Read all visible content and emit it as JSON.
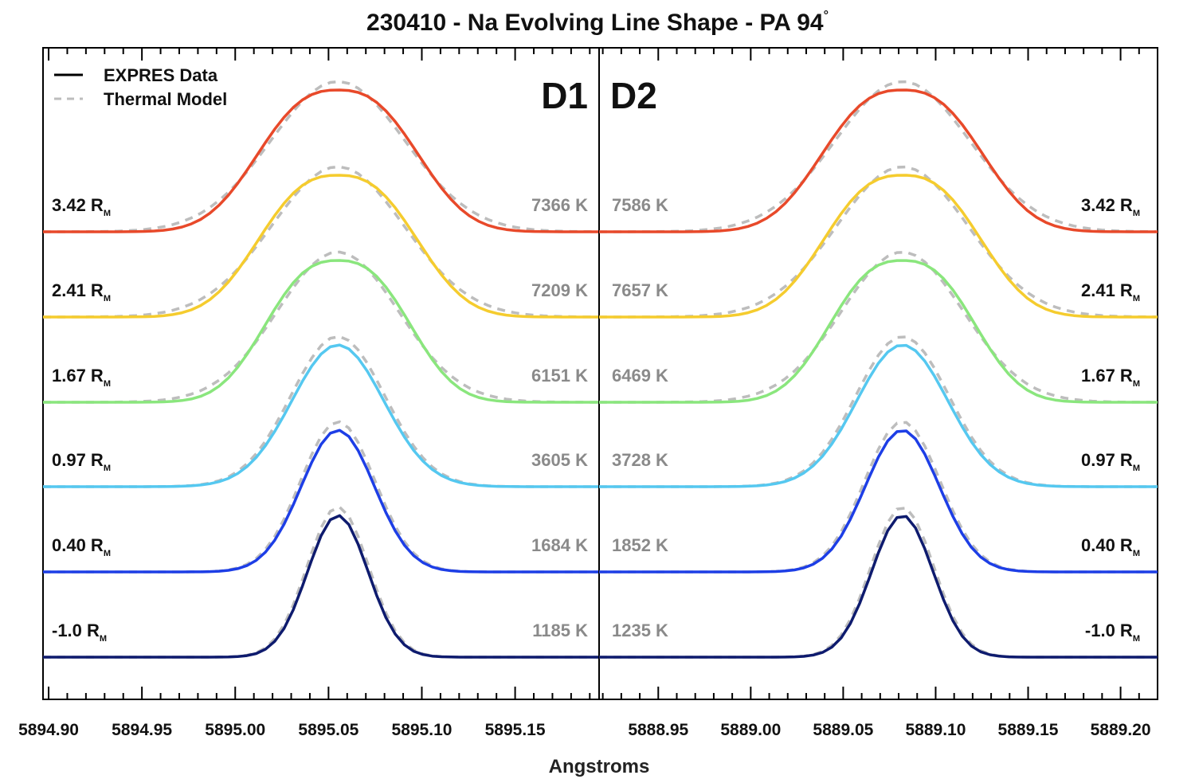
{
  "chart_data": {
    "type": "line",
    "title": "230410 - Na Evolving Line Shape - PA 94",
    "title_degree": "°",
    "xlabel": "Angstroms",
    "grid": false,
    "legend": {
      "position": "top-left",
      "entries": [
        {
          "label": "EXPRES Data",
          "style": "solid",
          "color": "#000000"
        },
        {
          "label": "Thermal Model",
          "style": "dashed",
          "color": "#bdbdbd"
        }
      ]
    },
    "distance_subscript": "M",
    "panels": [
      {
        "label": "D1",
        "xlim": [
          5894.897,
          5895.195
        ],
        "ticks": [
          "5894.90",
          "5894.95",
          "5895.00",
          "5895.05",
          "5895.10",
          "5895.15"
        ],
        "tick_values": [
          5894.9,
          5894.95,
          5895.0,
          5895.05,
          5895.1,
          5895.15
        ],
        "center": 5895.055,
        "series": [
          {
            "distance": "3.42 R",
            "temperature": "7366 K",
            "color": "#e8492a",
            "fwhm": 0.083,
            "flat_top": true
          },
          {
            "distance": "2.41 R",
            "temperature": "7209 K",
            "color": "#f5cc2e",
            "fwhm": 0.082,
            "flat_top": true
          },
          {
            "distance": "1.67 R",
            "temperature": "6151 K",
            "color": "#8ae67d",
            "fwhm": 0.075,
            "flat_top": true
          },
          {
            "distance": "0.97 R",
            "temperature": "3605 K",
            "color": "#55c8f0",
            "fwhm": 0.058,
            "flat_top": false
          },
          {
            "distance": "0.40 R",
            "temperature": "1684 K",
            "color": "#1d3ee6",
            "fwhm": 0.046,
            "flat_top": false
          },
          {
            "distance": "-1.0 R",
            "temperature": "1185 K",
            "color": "#0e1b6e",
            "fwhm": 0.038,
            "flat_top": false
          }
        ]
      },
      {
        "label": "D2",
        "xlim": [
          5888.918,
          5889.22
        ],
        "ticks": [
          "5888.95",
          "5889.00",
          "5889.05",
          "5889.10",
          "5889.15",
          "5889.20"
        ],
        "tick_values": [
          5888.95,
          5889.0,
          5889.05,
          5889.1,
          5889.15,
          5889.2
        ],
        "center": 5889.082,
        "series": [
          {
            "distance": "3.42 R",
            "temperature": "7586 K",
            "color": "#e8492a",
            "fwhm": 0.084,
            "flat_top": true
          },
          {
            "distance": "2.41 R",
            "temperature": "7657 K",
            "color": "#f5cc2e",
            "fwhm": 0.082,
            "flat_top": true
          },
          {
            "distance": "1.67 R",
            "temperature": "6469 K",
            "color": "#8ae67d",
            "fwhm": 0.076,
            "flat_top": true
          },
          {
            "distance": "0.97 R",
            "temperature": "3728 K",
            "color": "#55c8f0",
            "fwhm": 0.058,
            "flat_top": false
          },
          {
            "distance": "0.40 R",
            "temperature": "1852 K",
            "color": "#1d3ee6",
            "fwhm": 0.047,
            "flat_top": false
          },
          {
            "distance": "-1.0 R",
            "temperature": "1235 K",
            "color": "#0e1b6e",
            "fwhm": 0.039,
            "flat_top": false
          }
        ]
      }
    ]
  }
}
